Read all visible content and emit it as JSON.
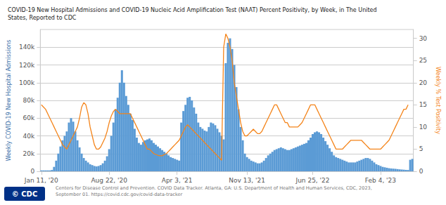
{
  "chart_data": {
    "type": "bar",
    "title": "COVID-19 New Hospital Admissions and COVID-19 Nucleic Acid Amplification Test (NAAT) Percent Positivity, by Week, in The United\nStates, Reported to CDC",
    "ylabel": "Weekly COVID-19 New Hospital Admissions",
    "y2label": "Weekly % Test Positivity",
    "annotations": [
      "Centers for Disease Control and Prevention. COVID Data Tracker. Atlanta, GA: U.S. Department of Health and Human Services, CDC, 2023, September 01. https://covid.cdc.gov/covid-data-tracker",
      "© CDC"
    ],
    "categories": [
      "Jan 11, '20",
      null,
      null,
      null,
      null,
      null,
      null,
      null,
      null,
      null,
      null,
      null,
      null,
      null,
      null,
      null,
      null,
      null,
      null,
      null,
      null,
      null,
      null,
      null,
      null,
      null,
      null,
      null,
      null,
      null,
      null,
      null,
      "Aug 22, '20",
      null,
      null,
      null,
      null,
      null,
      null,
      null,
      null,
      null,
      null,
      null,
      null,
      null,
      null,
      null,
      null,
      null,
      null,
      null,
      null,
      null,
      null,
      null,
      null,
      null,
      null,
      null,
      null,
      null,
      null,
      null,
      "Apr 3, '21",
      null,
      null,
      null,
      null,
      null,
      null,
      null,
      null,
      null,
      null,
      null,
      null,
      null,
      null,
      null,
      null,
      null,
      null,
      null,
      null,
      null,
      null,
      null,
      null,
      null,
      null,
      null,
      null,
      null,
      null,
      null,
      null,
      "Nov 13, '21",
      null,
      null,
      null,
      null,
      null,
      null,
      null,
      null,
      null,
      null,
      null,
      null,
      null,
      null,
      null,
      null,
      null,
      null,
      null,
      null,
      null,
      null,
      null,
      null,
      null,
      null,
      null,
      null,
      null,
      null,
      "Jun 25, '22",
      null,
      null,
      null,
      null,
      null,
      null,
      null,
      null,
      null,
      null,
      null,
      null,
      null,
      null,
      null,
      null,
      null,
      null,
      null,
      null,
      null,
      null,
      null,
      null,
      null,
      null,
      null,
      null,
      null,
      null,
      null,
      "Feb 4, '23",
      null,
      null,
      null,
      null,
      null,
      null,
      null,
      null,
      null,
      null,
      null,
      null,
      null,
      null,
      null
    ],
    "series": [
      {
        "type": "bar",
        "color": "#5b9bd5",
        "values": [
          1000,
          1000,
          1000,
          1000,
          1000,
          1500,
          5000,
          12000,
          20000,
          28000,
          35000,
          40000,
          45000,
          55000,
          60000,
          56000,
          45000,
          35000,
          27000,
          20000,
          15000,
          12000,
          10000,
          8000,
          7000,
          6000,
          5500,
          6000,
          7000,
          9000,
          12000,
          17000,
          25000,
          40000,
          55000,
          70000,
          83000,
          100000,
          114000,
          100000,
          85000,
          75000,
          65000,
          58000,
          48000,
          38000,
          32000,
          30000,
          33000,
          35000,
          36000,
          37000,
          35000,
          32000,
          30000,
          28000,
          26000,
          24000,
          22000,
          20000,
          18000,
          16000,
          15000,
          14000,
          13000,
          12000,
          55000,
          68000,
          75000,
          83000,
          84000,
          80000,
          72000,
          65000,
          55000,
          50000,
          48000,
          46000,
          45000,
          50000,
          55000,
          54000,
          52000,
          48000,
          44000,
          40000,
          36000,
          122000,
          145000,
          150000,
          138000,
          120000,
          95000,
          70000,
          50000,
          35000,
          20000,
          16000,
          14000,
          12000,
          11000,
          10000,
          9000,
          9000,
          10000,
          12000,
          15000,
          18000,
          20000,
          22000,
          24000,
          25000,
          26000,
          27000,
          26000,
          25000,
          24000,
          24000,
          25000,
          26000,
          27000,
          28000,
          29000,
          30000,
          31000,
          32000,
          35000,
          38000,
          42000,
          44000,
          45000,
          44000,
          42000,
          38000,
          34000,
          30000,
          26000,
          22000,
          18000,
          16000,
          15000,
          14000,
          13000,
          12000,
          11000,
          10000,
          10000,
          10000,
          10000,
          11000,
          12000,
          13000,
          14000,
          15000,
          15000,
          14000,
          12000,
          10000,
          8000,
          7000,
          6000,
          5000,
          4500,
          4000,
          3500,
          3200,
          3000,
          2800,
          2500,
          2200,
          2000,
          1800,
          1600,
          1500,
          13000,
          14000
        ]
      },
      {
        "type": "line",
        "color": "#f4841a",
        "axis": "y2",
        "values": [
          15,
          14.5,
          14,
          13,
          12,
          11,
          10,
          9,
          8,
          7,
          6,
          5.5,
          5,
          6,
          7,
          8,
          9,
          10,
          12,
          14.5,
          15.5,
          15,
          13,
          10,
          8,
          6,
          5,
          5,
          5.5,
          6.5,
          7.5,
          9,
          11,
          12.5,
          13.5,
          14,
          13.5,
          13,
          13,
          13,
          13,
          13,
          13,
          12,
          11,
          10,
          9,
          8,
          7,
          6,
          5,
          5,
          4.5,
          4,
          3.8,
          3.6,
          3.5,
          3.5,
          3.8,
          4,
          4.5,
          5,
          5.5,
          6,
          6.5,
          7,
          8,
          9,
          10,
          10.5,
          10,
          9.5,
          9,
          8.5,
          8,
          7.5,
          7,
          6.5,
          6,
          5.5,
          5,
          4.5,
          4,
          3.5,
          3,
          2.5,
          28,
          31,
          30,
          28,
          25,
          20,
          17,
          14,
          11,
          9,
          8,
          8,
          8.5,
          9,
          9.5,
          9,
          8.5,
          8.5,
          9,
          10,
          11,
          12,
          13,
          14,
          15,
          15,
          14,
          13,
          12,
          11,
          11,
          10,
          10,
          10,
          10,
          10,
          10.5,
          11,
          12,
          13,
          14,
          15,
          15,
          15,
          14,
          13,
          12,
          11,
          10,
          9,
          8,
          7,
          6,
          5,
          5,
          5,
          5,
          5.5,
          6,
          6.5,
          7,
          7,
          7,
          7,
          7,
          7,
          6.5,
          6,
          5.5,
          5,
          5,
          5,
          5,
          5,
          5,
          5.5,
          6,
          6.5,
          7,
          8,
          9,
          10,
          11,
          12,
          13,
          14,
          14,
          15,
          null,
          null
        ]
      }
    ],
    "ylim": [
      0,
      160000
    ],
    "yticks": [
      0,
      {
        "value": 20000,
        "label": "20k"
      },
      {
        "value": 40000,
        "label": "40k"
      },
      {
        "value": 60000,
        "label": "60k"
      },
      {
        "value": 80000,
        "label": "80k"
      },
      {
        "value": 100000,
        "label": "100k"
      },
      {
        "value": 120000,
        "label": "120k"
      },
      {
        "value": 140000,
        "label": "140k"
      }
    ],
    "y2lim": [
      0,
      32
    ],
    "y2ticks": [
      0,
      5,
      10,
      15,
      20,
      25,
      30
    ],
    "grid": true
  }
}
